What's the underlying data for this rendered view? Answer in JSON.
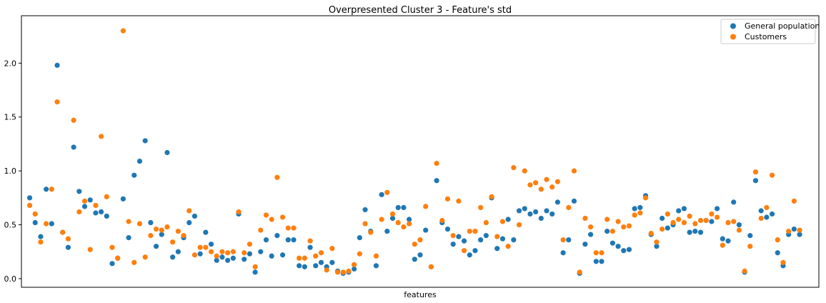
{
  "chart_data": {
    "type": "scatter",
    "title": "Overpresented Cluster 3 - Feature's std",
    "xlabel": "features",
    "ylabel": "",
    "xlim": [
      -1.5,
      143.5
    ],
    "ylim": [
      -0.08,
      2.44
    ],
    "x_ticks_visible": false,
    "y_ticks": [
      0.0,
      0.5,
      1.0,
      1.5,
      2.0
    ],
    "y_tick_labels": [
      "0.0",
      "0.5",
      "1.0",
      "1.5",
      "2.0"
    ],
    "grid": false,
    "legend_position": "top-right",
    "series": [
      {
        "name": "General population",
        "color": "#1f77b4",
        "values": [
          0.75,
          0.52,
          0.39,
          0.83,
          0.51,
          1.98,
          0.43,
          0.29,
          1.22,
          0.81,
          0.67,
          0.73,
          0.61,
          0.62,
          0.58,
          0.14,
          0.19,
          0.74,
          0.38,
          0.96,
          1.09,
          1.28,
          0.52,
          0.3,
          0.41,
          1.17,
          0.2,
          0.25,
          0.38,
          0.52,
          0.58,
          0.23,
          0.43,
          0.32,
          0.17,
          0.2,
          0.17,
          0.19,
          0.6,
          0.18,
          0.23,
          0.06,
          0.25,
          0.36,
          0.21,
          0.4,
          0.22,
          0.36,
          0.36,
          0.12,
          0.11,
          0.29,
          0.12,
          0.15,
          0.11,
          0.15,
          0.07,
          0.05,
          0.06,
          0.09,
          0.38,
          0.64,
          0.44,
          0.12,
          0.78,
          0.44,
          0.56,
          0.66,
          0.66,
          0.55,
          0.18,
          0.22,
          0.45,
          0.11,
          0.91,
          0.52,
          0.46,
          0.32,
          0.39,
          0.35,
          0.22,
          0.26,
          0.36,
          0.4,
          0.75,
          0.28,
          0.37,
          0.55,
          0.36,
          0.63,
          0.65,
          0.6,
          0.62,
          0.56,
          0.63,
          0.6,
          0.71,
          0.24,
          0.36,
          0.72,
          0.05,
          0.32,
          0.41,
          0.16,
          0.16,
          0.44,
          0.33,
          0.3,
          0.26,
          0.27,
          0.65,
          0.66,
          0.77,
          0.41,
          0.3,
          0.56,
          0.47,
          0.5,
          0.63,
          0.65,
          0.43,
          0.44,
          0.43,
          0.54,
          0.53,
          0.65,
          0.37,
          0.35,
          0.71,
          0.5,
          0.06,
          0.4,
          0.91,
          0.63,
          0.57,
          0.6,
          0.24,
          0.12,
          0.41,
          0.46,
          0.41
        ]
      },
      {
        "name": "Customers",
        "color": "#ff7f0e",
        "values": [
          0.68,
          0.6,
          0.34,
          0.51,
          0.83,
          1.64,
          0.43,
          0.37,
          1.47,
          0.62,
          0.72,
          0.27,
          0.68,
          1.32,
          0.76,
          0.29,
          0.19,
          2.3,
          0.53,
          0.15,
          0.51,
          0.2,
          0.4,
          0.46,
          0.45,
          0.48,
          0.34,
          0.44,
          0.4,
          0.63,
          0.22,
          0.29,
          0.29,
          0.25,
          0.21,
          0.25,
          0.24,
          0.25,
          0.62,
          0.24,
          0.32,
          0.11,
          0.45,
          0.59,
          0.55,
          0.94,
          0.57,
          0.47,
          0.47,
          0.19,
          0.19,
          0.35,
          0.21,
          0.24,
          0.08,
          0.28,
          0.06,
          0.06,
          0.07,
          0.13,
          0.23,
          0.51,
          0.43,
          0.21,
          0.55,
          0.8,
          0.6,
          0.52,
          0.48,
          0.51,
          0.32,
          0.36,
          0.67,
          0.11,
          1.07,
          0.54,
          0.74,
          0.4,
          0.72,
          0.26,
          0.44,
          0.44,
          0.66,
          0.52,
          0.76,
          0.39,
          0.53,
          0.3,
          1.03,
          0.5,
          1.0,
          0.87,
          0.89,
          0.83,
          0.92,
          0.85,
          0.9,
          0.36,
          0.66,
          1.0,
          0.06,
          0.56,
          0.48,
          0.24,
          0.24,
          0.55,
          0.44,
          0.53,
          0.48,
          0.49,
          0.59,
          0.61,
          0.75,
          0.42,
          0.34,
          0.46,
          0.6,
          0.52,
          0.55,
          0.52,
          0.58,
          0.51,
          0.54,
          0.54,
          0.6,
          0.57,
          0.31,
          0.52,
          0.53,
          0.45,
          0.07,
          0.3,
          0.99,
          0.56,
          0.66,
          0.96,
          0.36,
          0.15,
          0.44,
          0.72,
          0.45
        ]
      }
    ]
  }
}
